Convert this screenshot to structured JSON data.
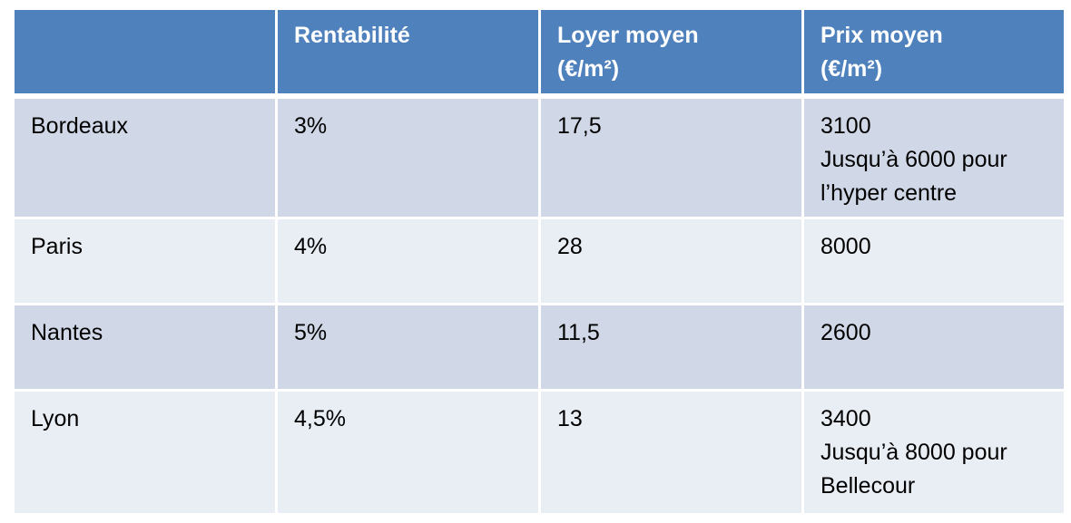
{
  "header": {
    "col1": "",
    "col2": "Rentabilité",
    "col3_line1": "Loyer moyen",
    "col3_line2": "(€/m²)",
    "col4_line1": "Prix moyen",
    "col4_line2": "(€/m²)"
  },
  "rows": [
    {
      "city": "Bordeaux",
      "rentabilite": "3%",
      "loyer": "17,5",
      "prix_lines": [
        "3100",
        "Jusqu’à 6000 pour",
        "l’hyper centre"
      ]
    },
    {
      "city": "Paris",
      "rentabilite": "4%",
      "loyer": "28",
      "prix_lines": [
        "8000"
      ]
    },
    {
      "city": "Nantes",
      "rentabilite": "5%",
      "loyer": "11,5",
      "prix_lines": [
        "2600"
      ]
    },
    {
      "city": "Lyon",
      "rentabilite": "4,5%",
      "loyer": "13",
      "prix_lines": [
        "3400",
        "Jusqu’à 8000 pour",
        "Bellecour"
      ]
    }
  ],
  "colors": {
    "header_bg": "#4f81bd",
    "row_odd_bg": "#d0d8e8",
    "row_even_bg": "#e9edf4"
  }
}
